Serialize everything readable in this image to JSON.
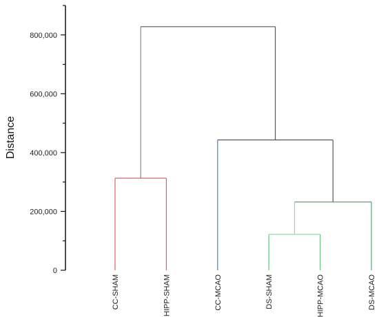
{
  "chart_data": {
    "type": "dendrogram",
    "title": "",
    "xlabel": "",
    "ylabel": "Distance",
    "ylim": [
      0,
      900000
    ],
    "y_ticks": [
      0,
      200000,
      400000,
      600000,
      800000
    ],
    "y_tick_labels": [
      "0",
      "200,000",
      "400,000",
      "600,000",
      "800,000"
    ],
    "leaves": [
      "CC-SHAM",
      "HIPP-SHAM",
      "CC-MCAO",
      "DS-SHAM",
      "HIPP-MCAO",
      "DS-MCAO"
    ],
    "merges": [
      {
        "id": "m1",
        "left": "HIPP-MCAO",
        "right": "DS-SHAM",
        "height": 122000,
        "color": "#8fd19e"
      },
      {
        "id": "m2",
        "left": "m1",
        "right": "DS-MCAO",
        "height": 232000,
        "color": "#4caf6e"
      },
      {
        "id": "m3",
        "left": "CC-SHAM",
        "right": "HIPP-SHAM",
        "height": 313000,
        "color": "#e06060"
      },
      {
        "id": "m4",
        "left": "CC-MCAO",
        "right": "m2",
        "height": 443000,
        "color": "#555555"
      },
      {
        "id": "m5",
        "left": "m3",
        "right": "m4",
        "height": 828000,
        "color": "#555555"
      }
    ],
    "branch_colors": {
      "CC-SHAM": "#e06060",
      "HIPP-SHAM": "#e06060",
      "CC-MCAO": "#3a7fd9",
      "DS-SHAM": "#6cc387",
      "HIPP-MCAO": "#6cc387",
      "DS-MCAO": "#4caf6e",
      "m1": "#9dd9ab",
      "m2": "#555555",
      "m3": "#888888",
      "m4": "#555555"
    },
    "grid": false,
    "legend": "none"
  }
}
